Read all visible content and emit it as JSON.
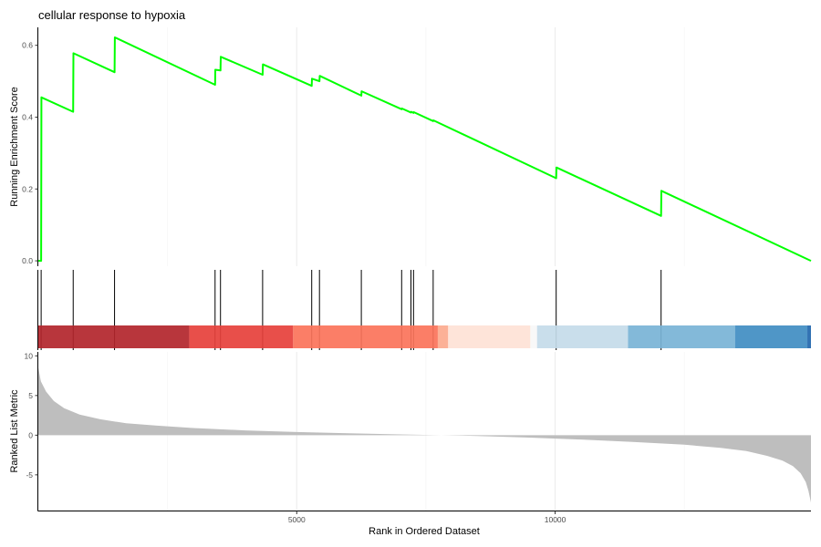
{
  "chart_data": {
    "type": "line",
    "title": "cellular response to hypoxia",
    "xlabel": "Rank in Ordered Dataset",
    "xlim": [
      0,
      14950
    ],
    "x_ticks": [
      5000,
      10000
    ],
    "x_tick_labels": [
      "5000",
      "10000"
    ],
    "grid": "vertical lines only",
    "panels": {
      "running_score": {
        "ylabel": "Running Enrichment Score",
        "ylim": [
          -0.015,
          0.65
        ],
        "y_ticks": [
          0.0,
          0.2,
          0.4,
          0.6
        ],
        "y_tick_labels": [
          "0.0",
          "0.2",
          "0.4",
          "0.6"
        ],
        "line_color": "#00ff00",
        "series": [
          {
            "x": [
              0,
              55,
              60,
              675,
              680,
              1475,
              1480,
              3420,
              3425,
              3525,
              3530,
              4340,
              4345,
              5290,
              5295,
              5440,
              5445,
              6250,
              6255,
              7030,
              7035,
              7210,
              7215,
              7260,
              7265,
              7640,
              7645,
              10020,
              10025,
              12050,
              12055,
              14950
            ],
            "y": [
              0.0,
              0.0,
              0.455,
              0.415,
              0.578,
              0.525,
              0.622,
              0.49,
              0.532,
              0.53,
              0.568,
              0.518,
              0.547,
              0.487,
              0.507,
              0.5,
              0.515,
              0.46,
              0.472,
              0.422,
              0.424,
              0.413,
              0.415,
              0.412,
              0.414,
              0.389,
              0.391,
              0.23,
              0.26,
              0.125,
              0.195,
              0.0
            ]
          }
        ]
      },
      "gene_hits": {
        "positions": [
          55,
          675,
          1475,
          3420,
          3525,
          4340,
          5290,
          5440,
          6250,
          7030,
          7210,
          7260,
          7640,
          10020,
          12050
        ]
      },
      "rank_bands": {
        "segments": [
          {
            "from": 0,
            "to": 2920,
            "color": "#b2252b"
          },
          {
            "from": 2920,
            "to": 4930,
            "color": "#e6403b"
          },
          {
            "from": 4930,
            "to": 7730,
            "color": "#fb735a"
          },
          {
            "from": 7730,
            "to": 7930,
            "color": "#fcaa8e"
          },
          {
            "from": 7930,
            "to": 9520,
            "color": "#fee2d6"
          },
          {
            "from": 9520,
            "to": 9650,
            "color": "#f7f7f7"
          },
          {
            "from": 9650,
            "to": 11410,
            "color": "#c4dbe9"
          },
          {
            "from": 11410,
            "to": 13480,
            "color": "#78b3d6"
          },
          {
            "from": 13480,
            "to": 14880,
            "color": "#408dc2"
          },
          {
            "from": 14880,
            "to": 14950,
            "color": "#2166ac"
          }
        ]
      },
      "ranked_metric": {
        "ylabel": "Ranked List Metric",
        "ylim": [
          -9.5,
          10.5
        ],
        "y_ticks": [
          -5,
          0,
          5,
          10
        ],
        "y_tick_labels": [
          "-5",
          "0",
          "5",
          "10"
        ],
        "fill_color": "#bebebe",
        "x": [
          0,
          50,
          150,
          300,
          500,
          800,
          1200,
          1700,
          2300,
          3000,
          4000,
          5000,
          6000,
          7000,
          7800,
          8500,
          9500,
          10500,
          11500,
          12500,
          13200,
          13700,
          14100,
          14400,
          14600,
          14750,
          14850,
          14900,
          14950
        ],
        "y": [
          8.5,
          6.8,
          5.5,
          4.3,
          3.4,
          2.6,
          2.0,
          1.5,
          1.2,
          0.9,
          0.6,
          0.4,
          0.25,
          0.1,
          0.0,
          -0.1,
          -0.3,
          -0.55,
          -0.85,
          -1.2,
          -1.6,
          -2.0,
          -2.6,
          -3.2,
          -3.9,
          -4.8,
          -5.9,
          -7.0,
          -8.5
        ]
      }
    }
  }
}
